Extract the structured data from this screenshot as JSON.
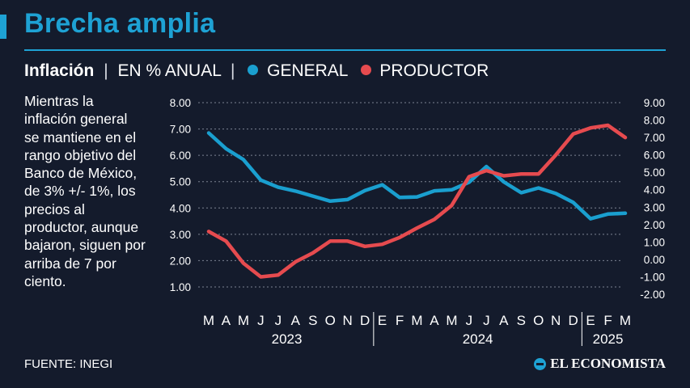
{
  "header": {
    "title": "Brecha amplia",
    "subtitle_bold": "Inflación",
    "subtitle_sep1": "|",
    "subtitle_units": "EN % ANUAL",
    "subtitle_sep2": "|"
  },
  "description": "Mientras la inflación general se mantiene en el rango objetivo del Banco de México, de 3% +/- 1%, los precios al productor, aunque bajaron, siguen por arriba de 7 por ciento.",
  "footer": {
    "source": "FUENTE: INEGI",
    "brand": "EL ECONOMISTA"
  },
  "colors": {
    "background": "#141b2c",
    "accent": "#1ea2d4",
    "general": "#1a9fcf",
    "productor": "#e64b4f"
  },
  "chart_data": {
    "type": "line",
    "title": "Inflación",
    "categories": [
      "M",
      "A",
      "M",
      "J",
      "J",
      "A",
      "S",
      "O",
      "N",
      "D",
      "E",
      "F",
      "M",
      "A",
      "M",
      "J",
      "J",
      "A",
      "S",
      "O",
      "N",
      "D",
      "E",
      "F",
      "M"
    ],
    "year_groups": [
      {
        "label": "2023",
        "start": 0,
        "end": 9
      },
      {
        "label": "2024",
        "start": 10,
        "end": 21
      },
      {
        "label": "2025",
        "start": 22,
        "end": 24
      }
    ],
    "left_axis": {
      "ylim": [
        1.0,
        8.0
      ],
      "ticks": [
        "8.00",
        "7.00",
        "6.00",
        "5.00",
        "4.00",
        "3.00",
        "2.00",
        "1.00"
      ]
    },
    "right_axis": {
      "ylim": [
        -2.0,
        9.0
      ],
      "ticks": [
        "9.00",
        "8.00",
        "7.00",
        "6.00",
        "5.00",
        "4.00",
        "3.00",
        "2.00",
        "1.00",
        "0.00",
        "-1.00",
        "-2.00"
      ]
    },
    "grid": true,
    "legend_placement": "top",
    "series": [
      {
        "name": "GENERAL",
        "axis": "left",
        "values": [
          6.85,
          6.25,
          5.84,
          5.06,
          4.79,
          4.64,
          4.45,
          4.26,
          4.32,
          4.66,
          4.88,
          4.4,
          4.42,
          4.65,
          4.69,
          4.98,
          5.57,
          4.99,
          4.58,
          4.76,
          4.55,
          4.21,
          3.59,
          3.77,
          3.8
        ]
      },
      {
        "name": "PRODUCTOR",
        "axis": "right",
        "values": [
          1.6,
          1.05,
          -0.22,
          -1.0,
          -0.9,
          -0.14,
          0.37,
          1.05,
          1.05,
          0.75,
          0.87,
          1.26,
          1.8,
          2.3,
          3.1,
          4.75,
          5.1,
          4.8,
          4.9,
          4.9,
          6.0,
          7.2,
          7.55,
          7.7,
          7.0
        ]
      }
    ]
  }
}
